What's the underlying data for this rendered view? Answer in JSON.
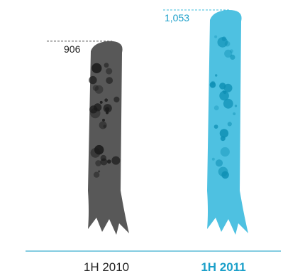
{
  "chart_data": {
    "type": "bar",
    "categories": [
      "1H 2010",
      "1H 2011"
    ],
    "values": [
      906,
      1053
    ],
    "value_labels": [
      "906",
      "1,053"
    ],
    "ylim": [
      0,
      1053
    ],
    "grid": false,
    "title": "",
    "xlabel": "",
    "ylabel": "",
    "colors": {
      "bar_2010": "#4a4a4a",
      "bar_2011": "#3fbcde",
      "spot_2010": "#1a1a1a",
      "spot_2011": "#0e8fb4",
      "label_2010": "#222222",
      "label_2011": "#1a9fc9",
      "axis": "#3aaecf",
      "leader_2010": "#555555",
      "leader_2011": "#3fbcde"
    },
    "highlight_category": "1H 2011"
  }
}
